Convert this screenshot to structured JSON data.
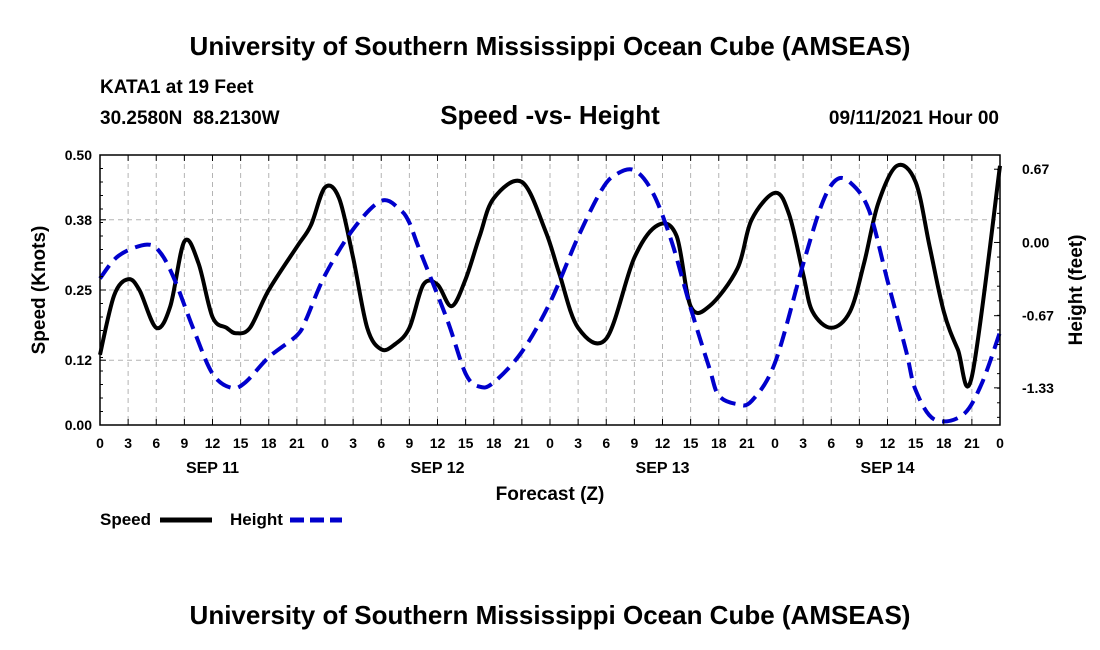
{
  "page": {
    "header_title": "University of Southern Mississippi Ocean Cube (AMSEAS)",
    "footer_title": "University of Southern Mississippi Ocean Cube (AMSEAS)",
    "station_line": "KATA1 at 19 Feet",
    "coords_line": "30.2580N  88.2130W",
    "datetime": "09/11/2021 Hour 00"
  },
  "chart_data": {
    "type": "line",
    "title": "Speed -vs- Height",
    "xlabel": "Forecast (Z)",
    "ylabel": "Speed (Knots)",
    "y2label": "Height (feet)",
    "x_range_hours": [
      0,
      96
    ],
    "ylim": [
      0,
      0.5
    ],
    "y2lim": [
      -1.67,
      0.8
    ],
    "yticks": [
      "0.00",
      "0.12",
      "0.25",
      "0.38",
      "0.50"
    ],
    "y2ticks": [
      "-1.33",
      "-0.67",
      "0.00",
      "0.67"
    ],
    "xtick_labels": [
      "0",
      "3",
      "6",
      "9",
      "12",
      "15",
      "18",
      "21",
      "0",
      "3",
      "6",
      "9",
      "12",
      "15",
      "18",
      "21",
      "0",
      "3",
      "6",
      "9",
      "12",
      "15",
      "18",
      "21",
      "0",
      "3",
      "6",
      "9",
      "12",
      "15",
      "18",
      "21",
      "0"
    ],
    "day_labels": [
      {
        "label": "SEP 11",
        "hour": 12
      },
      {
        "label": "SEP 12",
        "hour": 36
      },
      {
        "label": "SEP 13",
        "hour": 60
      },
      {
        "label": "SEP 14",
        "hour": 84
      }
    ],
    "legend": [
      {
        "name": "Speed",
        "color": "#000000",
        "style": "solid"
      },
      {
        "name": "Height",
        "color": "#0000cc",
        "style": "dashed"
      }
    ],
    "series": [
      {
        "name": "Speed",
        "axis": "left",
        "color": "#000000",
        "x": [
          0,
          1.5,
          3,
          4.2,
          6,
          7.5,
          9,
          10.5,
          12,
          13.5,
          14.5,
          16,
          18,
          21,
          22.5,
          24,
          25.5,
          27,
          28.5,
          30,
          31.5,
          33,
          34.5,
          36,
          37.5,
          39,
          40.5,
          42,
          45,
          47.5,
          49,
          51,
          54,
          57,
          59.5,
          61.5,
          63,
          65,
          68,
          69.5,
          72,
          73.5,
          75,
          76,
          78,
          80,
          81.5,
          83,
          85,
          87,
          88.5,
          90,
          91.5,
          93,
          96
        ],
        "values": [
          0.13,
          0.24,
          0.27,
          0.25,
          0.18,
          0.22,
          0.34,
          0.3,
          0.2,
          0.18,
          0.17,
          0.18,
          0.25,
          0.33,
          0.37,
          0.44,
          0.42,
          0.31,
          0.18,
          0.14,
          0.15,
          0.18,
          0.26,
          0.26,
          0.22,
          0.27,
          0.35,
          0.42,
          0.45,
          0.36,
          0.28,
          0.18,
          0.16,
          0.31,
          0.37,
          0.35,
          0.22,
          0.22,
          0.29,
          0.38,
          0.43,
          0.39,
          0.28,
          0.21,
          0.18,
          0.21,
          0.3,
          0.41,
          0.48,
          0.45,
          0.33,
          0.21,
          0.14,
          0.09,
          0.48
        ]
      },
      {
        "name": "Height",
        "axis": "right",
        "color": "#0000cc",
        "x": [
          0,
          2,
          5,
          6.5,
          8,
          10,
          12,
          14,
          15.5,
          18,
          21,
          22,
          24,
          27,
          30,
          32,
          33,
          34,
          37,
          39,
          40.5,
          42,
          45,
          48,
          51,
          53.5,
          55,
          57,
          59,
          61,
          63,
          65,
          66,
          68,
          69.5,
          72,
          75,
          77,
          78.5,
          80,
          82,
          84,
          86,
          87,
          89,
          92,
          94,
          96
        ],
        "values": [
          -0.33,
          -0.12,
          -0.02,
          -0.1,
          -0.35,
          -0.8,
          -1.2,
          -1.33,
          -1.28,
          -1.05,
          -0.85,
          -0.7,
          -0.3,
          0.12,
          0.38,
          0.3,
          0.18,
          -0.05,
          -0.7,
          -1.2,
          -1.32,
          -1.28,
          -1.0,
          -0.55,
          0.05,
          0.48,
          0.62,
          0.66,
          0.45,
          0.0,
          -0.6,
          -1.15,
          -1.4,
          -1.48,
          -1.45,
          -1.1,
          -0.2,
          0.35,
          0.57,
          0.55,
          0.3,
          -0.35,
          -1.0,
          -1.35,
          -1.62,
          -1.58,
          -1.3,
          -0.82
        ]
      }
    ]
  }
}
